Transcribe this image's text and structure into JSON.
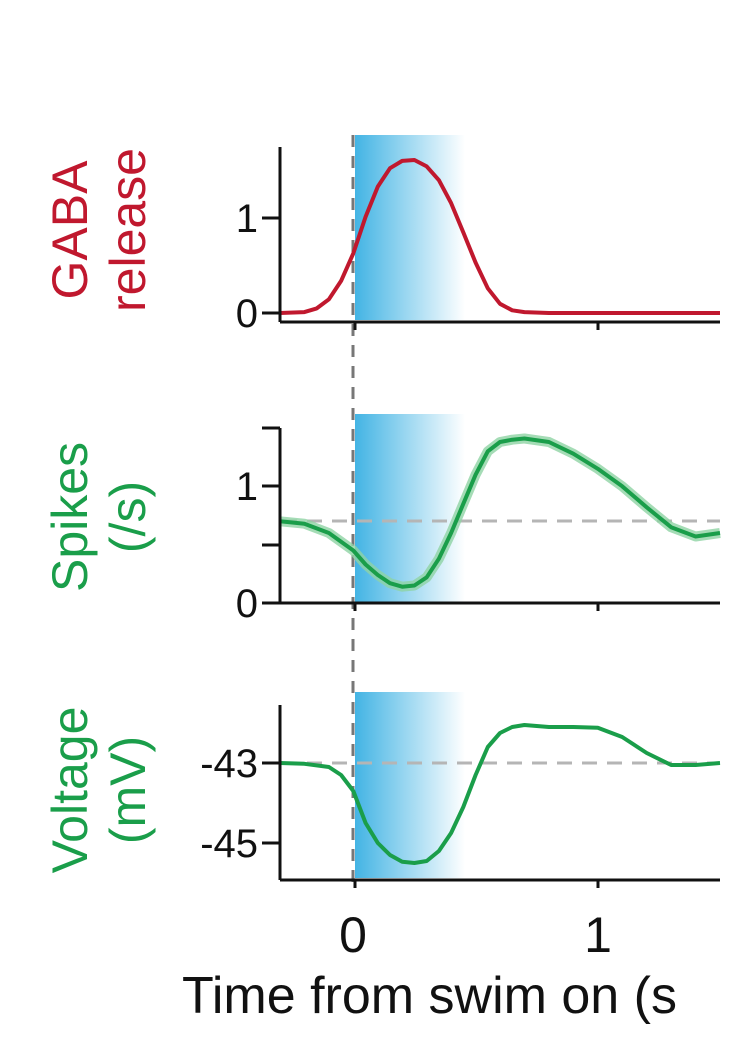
{
  "colors": {
    "gaba": "#c0182e",
    "green": "#1a9e4a",
    "green_band": "#8fd3a4",
    "axis": "#111111",
    "baseline": "#b5b5b5",
    "onset": "#777777",
    "shade": "#43b4e4"
  },
  "xaxis": {
    "label": "Time from swim on (s",
    "ticks": [
      0,
      1
    ],
    "tick_labels": [
      "0",
      "1"
    ],
    "xlim": [
      -0.3,
      1.5
    ]
  },
  "chart_data": [
    {
      "type": "line",
      "ylabel": [
        "GABA",
        "release"
      ],
      "ylim": [
        0,
        1.75
      ],
      "yticks": [
        0,
        1
      ],
      "ytick_labels": [
        "0",
        "1"
      ],
      "shaded_interval": [
        0,
        0.45
      ],
      "onset_line": 0,
      "series": [
        {
          "color_key": "gaba",
          "x": [
            -0.3,
            -0.2,
            -0.15,
            -0.1,
            -0.05,
            0,
            0.05,
            0.1,
            0.15,
            0.2,
            0.25,
            0.3,
            0.35,
            0.4,
            0.45,
            0.5,
            0.55,
            0.6,
            0.65,
            0.7,
            0.8,
            1.0,
            1.2,
            1.5
          ],
          "y": [
            0.0,
            0.01,
            0.05,
            0.15,
            0.35,
            0.65,
            1.05,
            1.38,
            1.58,
            1.66,
            1.67,
            1.6,
            1.45,
            1.2,
            0.88,
            0.55,
            0.27,
            0.1,
            0.03,
            0.01,
            0.0,
            0.0,
            0.0,
            0.0
          ]
        }
      ]
    },
    {
      "type": "line",
      "ylabel": [
        "Spikes",
        "(/s)"
      ],
      "ylim": [
        0,
        1.6
      ],
      "yticks": [
        0,
        0.5,
        1,
        1.5
      ],
      "ytick_labels": [
        "0",
        "",
        "1",
        ""
      ],
      "shaded_interval": [
        0,
        0.45
      ],
      "onset_line": 0,
      "baseline": 0.7,
      "series": [
        {
          "color_key": "green",
          "x": [
            -0.3,
            -0.2,
            -0.1,
            0,
            0.05,
            0.1,
            0.15,
            0.2,
            0.25,
            0.3,
            0.35,
            0.4,
            0.45,
            0.5,
            0.55,
            0.6,
            0.65,
            0.7,
            0.8,
            0.9,
            1.0,
            1.1,
            1.2,
            1.3,
            1.4,
            1.5
          ],
          "y": [
            0.7,
            0.68,
            0.6,
            0.45,
            0.33,
            0.24,
            0.17,
            0.14,
            0.15,
            0.22,
            0.38,
            0.6,
            0.85,
            1.1,
            1.3,
            1.38,
            1.4,
            1.41,
            1.38,
            1.28,
            1.15,
            1.0,
            0.82,
            0.65,
            0.57,
            0.6
          ]
        }
      ]
    },
    {
      "type": "line",
      "ylabel": [
        "Voltage",
        "(mV)"
      ],
      "ylim": [
        -45.7,
        -41.8
      ],
      "yticks": [
        -45,
        -43
      ],
      "ytick_labels": [
        "-45",
        "-43"
      ],
      "shaded_interval": [
        0,
        0.45
      ],
      "onset_line": 0,
      "baseline": -43,
      "series": [
        {
          "color_key": "green",
          "x": [
            -0.3,
            -0.2,
            -0.1,
            -0.05,
            0,
            0.05,
            0.1,
            0.15,
            0.2,
            0.25,
            0.3,
            0.35,
            0.4,
            0.45,
            0.5,
            0.55,
            0.6,
            0.65,
            0.7,
            0.8,
            0.9,
            1.0,
            1.1,
            1.2,
            1.3,
            1.4,
            1.5
          ],
          "y": [
            -43.0,
            -43.02,
            -43.1,
            -43.3,
            -43.7,
            -44.5,
            -45.0,
            -45.3,
            -45.47,
            -45.5,
            -45.45,
            -45.2,
            -44.75,
            -44.1,
            -43.3,
            -42.6,
            -42.25,
            -42.1,
            -42.05,
            -42.1,
            -42.1,
            -42.12,
            -42.35,
            -42.75,
            -43.05,
            -43.05,
            -43.0
          ]
        }
      ]
    }
  ]
}
